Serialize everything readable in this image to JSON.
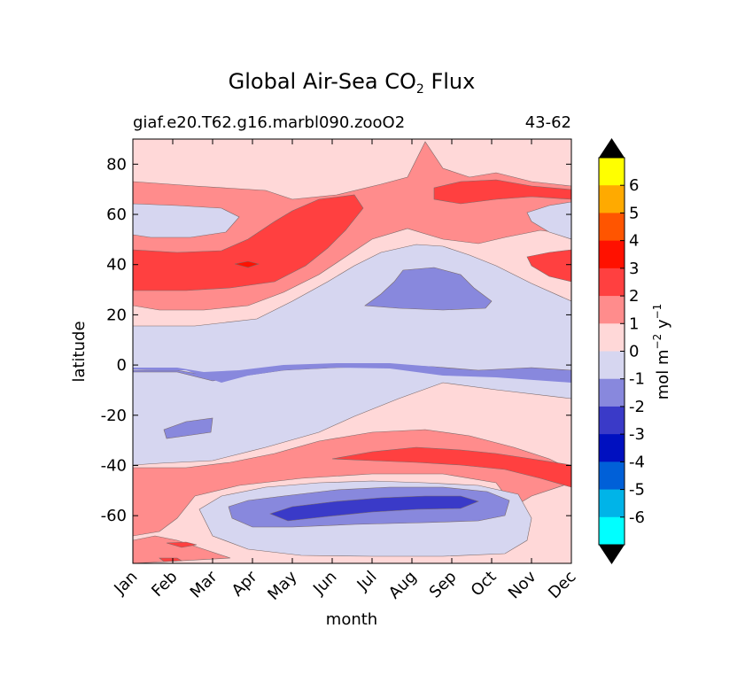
{
  "chart_data": {
    "type": "heatmap",
    "title_main": "Global Air-Sea CO",
    "title_sub": "2",
    "title_tail": " Flux",
    "case_label": "giaf.e20.T62.g16.marbl090.zooO2",
    "years_label": "43-62",
    "xlabel": "month",
    "ylabel": "latitude",
    "x_ticks": [
      "Jan",
      "Feb",
      "Mar",
      "Apr",
      "May",
      "Jun",
      "Jul",
      "Aug",
      "Sep",
      "Oct",
      "Nov",
      "Dec"
    ],
    "y_ticks": [
      "80",
      "60",
      "40",
      "20",
      "0",
      "-20",
      "-40",
      "-60"
    ],
    "y_tick_values": [
      80,
      60,
      40,
      20,
      0,
      -20,
      -40,
      -60
    ],
    "ylim": [
      -79,
      90
    ],
    "colorbar": {
      "label_main": "mol m",
      "label_exp1": "−2",
      "label_mid": " y",
      "label_exp2": "−1",
      "levels": [
        "6",
        "5",
        "4",
        "3",
        "2",
        "1",
        "0",
        "-1",
        "-2",
        "-3",
        "-4",
        "-5",
        "-6"
      ],
      "colors": [
        "#ffff00",
        "#ffaa00",
        "#ff5500",
        "#ff1100",
        "#ff4040",
        "#ff8c8c",
        "#ffd8d8",
        "#d6d6f0",
        "#8888dd",
        "#3a3ac8",
        "#0010c0",
        "#0060d8",
        "#00b4e8",
        "#00ffff"
      ],
      "extend_color": "#000000"
    },
    "bands_description_values": {
      "high_flux_north_midlat_peak": 3,
      "southern_ocean_min": -3
    }
  }
}
